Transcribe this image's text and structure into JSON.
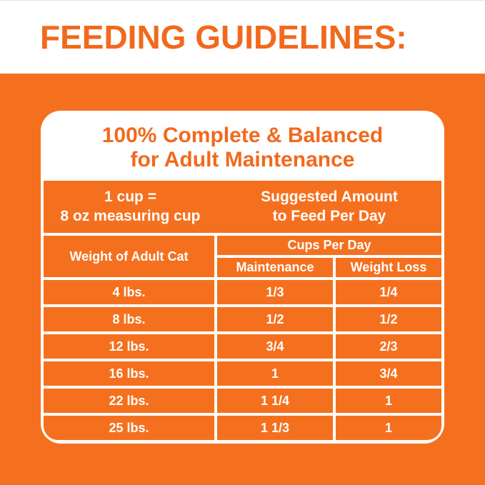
{
  "page_title": "FEEDING GUIDELINES:",
  "card": {
    "title_line1": "100% Complete & Balanced",
    "title_line2": "for Adult Maintenance",
    "cup_note_line1": "1 cup =",
    "cup_note_line2": "8 oz measuring cup",
    "suggested_line1": "Suggested Amount",
    "suggested_line2": "to Feed Per Day"
  },
  "table": {
    "weight_header": "Weight of Adult Cat",
    "cups_header": "Cups Per Day",
    "col_maintenance": "Maintenance",
    "col_weight_loss": "Weight Loss",
    "rows": [
      {
        "weight": "4 lbs.",
        "maintenance": "1/3",
        "weight_loss": "1/4"
      },
      {
        "weight": "8 lbs.",
        "maintenance": "1/2",
        "weight_loss": "1/2"
      },
      {
        "weight": "12 lbs.",
        "maintenance": "3/4",
        "weight_loss": "2/3"
      },
      {
        "weight": "16 lbs.",
        "maintenance": "1",
        "weight_loss": "3/4"
      },
      {
        "weight": "22 lbs.",
        "maintenance": "1 1/4",
        "weight_loss": "1"
      },
      {
        "weight": "25 lbs.",
        "maintenance": "1 1/3",
        "weight_loss": "1"
      }
    ]
  },
  "colors": {
    "brand_orange_text": "#F2691C",
    "background_orange": "#F5701E",
    "card_white": "#FFFFFF"
  }
}
